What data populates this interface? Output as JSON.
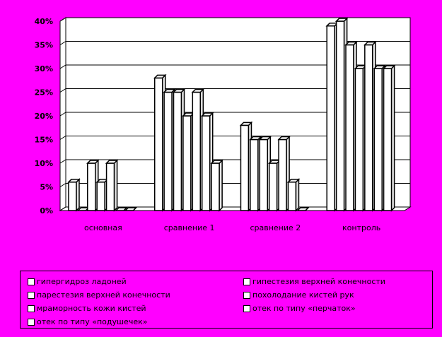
{
  "chart_data": {
    "type": "bar",
    "categories": [
      "основная",
      "сравнение 1",
      "сравнение 2",
      "контроль"
    ],
    "series": [
      {
        "name": "гипергидроз ладоней",
        "values": [
          6,
          28,
          18,
          39
        ]
      },
      {
        "name": "гипестезия верхней конечности",
        "values": [
          0,
          25,
          15,
          40
        ]
      },
      {
        "name": "парестезия верхней конечности",
        "values": [
          10,
          25,
          15,
          35
        ]
      },
      {
        "name": "похолодание кистей рук",
        "values": [
          6,
          20,
          10,
          30
        ]
      },
      {
        "name": "мраморность кожи кистей",
        "values": [
          10,
          25,
          15,
          35
        ]
      },
      {
        "name": "отек по типу «перчаток»",
        "values": [
          0,
          20,
          6,
          30
        ]
      },
      {
        "name": "отек по типу «подушечек»",
        "values": [
          0,
          10,
          0,
          30
        ]
      }
    ],
    "y_ticks": [
      "0%",
      "5%",
      "10%",
      "15%",
      "20%",
      "25%",
      "30%",
      "35%",
      "40%"
    ],
    "ylim": [
      0,
      40
    ],
    "grid": true,
    "legend_position": "bottom",
    "colors": {
      "background": "#ff00ff",
      "plot_area": "#ffffff",
      "bar_fill": "#ffffff",
      "bar_outline": "#000000"
    }
  }
}
